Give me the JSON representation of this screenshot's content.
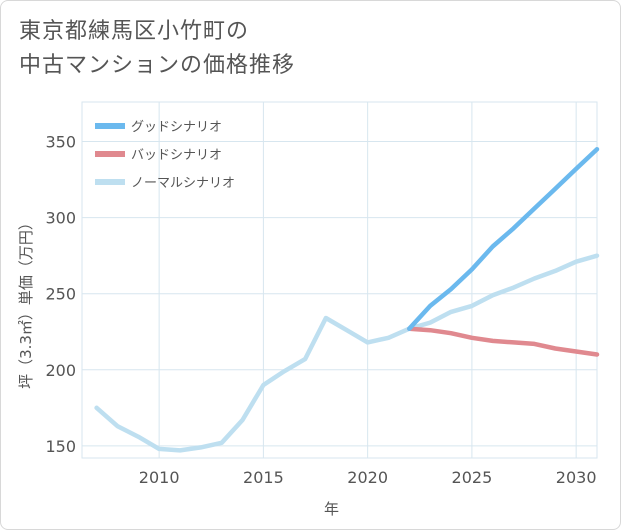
{
  "title": {
    "line1": "東京都練馬区小竹町の",
    "line2": "中古マンションの価格推移"
  },
  "chart_data": {
    "type": "line",
    "xlabel": "年",
    "ylabel": "坪（3.3㎡）単価（万円）",
    "xlim": [
      2006.3,
      2031
    ],
    "ylim": [
      142,
      376
    ],
    "x_ticks": [
      2010,
      2015,
      2020,
      2025,
      2030
    ],
    "y_ticks": [
      150,
      200,
      250,
      300,
      350
    ],
    "grid": true,
    "legend_position": "top-left",
    "series": [
      {
        "name": "グッドシナリオ",
        "color": "#6bb9ee",
        "x": [
          2022,
          2023,
          2024,
          2025,
          2026,
          2027,
          2028,
          2029,
          2030,
          2031
        ],
        "y": [
          227,
          242,
          253,
          266,
          281,
          293,
          306,
          319,
          332,
          345
        ]
      },
      {
        "name": "バッドシナリオ",
        "color": "#e0898f",
        "x": [
          2022,
          2023,
          2024,
          2025,
          2026,
          2027,
          2028,
          2029,
          2030,
          2031
        ],
        "y": [
          227,
          226,
          224,
          221,
          219,
          218,
          217,
          214,
          212,
          210
        ]
      },
      {
        "name": "ノーマルシナリオ",
        "color": "#bedff0",
        "x": [
          2007,
          2008,
          2009,
          2010,
          2011,
          2012,
          2013,
          2014,
          2015,
          2016,
          2017,
          2018,
          2019,
          2020,
          2021,
          2022,
          2023,
          2024,
          2025,
          2026,
          2027,
          2028,
          2029,
          2030,
          2031
        ],
        "y": [
          175,
          163,
          156,
          148,
          147,
          149,
          152,
          167,
          190,
          199,
          207,
          234,
          226,
          218,
          221,
          227,
          231,
          238,
          242,
          249,
          254,
          260,
          265,
          271,
          275
        ]
      }
    ]
  }
}
